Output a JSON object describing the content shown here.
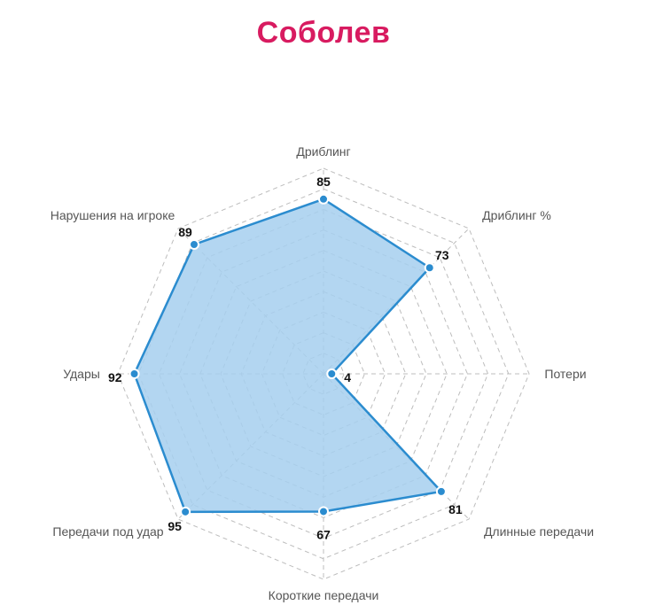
{
  "title": "Соболев",
  "colors": {
    "title": "#d81b60",
    "series_line": "#2b8ccf",
    "series_fill": "#a6cfee",
    "grid": "#bdbdbd"
  },
  "chart_data": {
    "type": "radar",
    "title": "Соболев",
    "axes": [
      "Дриблинг",
      "Дриблинг %",
      "Потери",
      "Длинные передачи",
      "Короткие передачи",
      "Передачи под удар",
      "Удары",
      "Нарушения на игроке"
    ],
    "series": [
      {
        "values": [
          85,
          73,
          4,
          81,
          67,
          95,
          92,
          89
        ]
      }
    ],
    "range": [
      0,
      100
    ],
    "grid_levels": 10,
    "grid": true,
    "legend": "none"
  }
}
